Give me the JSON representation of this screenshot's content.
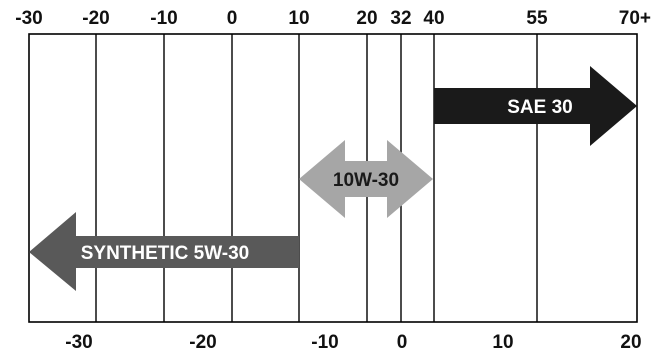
{
  "chart_data": {
    "type": "range-arrows",
    "top_axis": {
      "ticks": [
        "-30",
        "-20",
        "-10",
        "0",
        "10",
        "20",
        "32",
        "40",
        "55",
        "70+"
      ]
    },
    "bottom_axis": {
      "ticks": [
        "-30",
        "-20",
        "-10",
        "0",
        "10",
        "20"
      ]
    },
    "arrows": [
      {
        "label": "SAE 30",
        "from": "40",
        "to": "70+",
        "direction": "right",
        "color": "#1a1a1a",
        "text_color": "#ffffff"
      },
      {
        "label": "10W-30",
        "from": "10",
        "to": "40",
        "direction": "both",
        "color": "#a6a6a6",
        "text_color": "#1a1a1a"
      },
      {
        "label": "SYNTHETIC 5W-30",
        "from": "-30",
        "to": "10",
        "direction": "left",
        "color": "#595959",
        "text_color": "#ffffff"
      }
    ]
  }
}
